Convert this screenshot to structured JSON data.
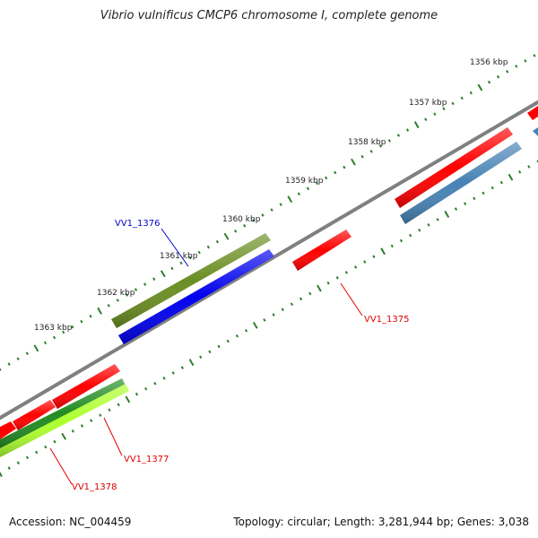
{
  "title": "Vibrio vulnificus CMCP6 chromosome I, complete genome",
  "footer": {
    "accession": "Accession: NC_004459",
    "topology": "Topology: circular; Length: 3,281,944 bp; Genes: 3,038"
  },
  "kbp_labels": [
    "1356 kbp",
    "1357 kbp",
    "1358 kbp",
    "1359 kbp",
    "1360 kbp",
    "1361 kbp",
    "1362 kbp",
    "1363 kbp"
  ],
  "gene_labels": [
    {
      "name": "VV1_1376",
      "color": "#0000cc"
    },
    {
      "name": "VV1_1375",
      "color": "#dd0000"
    },
    {
      "name": "VV1_1377",
      "color": "#dd0000"
    },
    {
      "name": "VV1_1378",
      "color": "#dd0000"
    }
  ],
  "colors": {
    "backbone": "#808080",
    "ticks": "#2e7d2e",
    "red": "#ff0000",
    "blue": "#0000ee",
    "olive": "#6b8e23",
    "steelblue": "#4682b4",
    "green": "#228b22",
    "lightgreen": "#adff2f"
  }
}
